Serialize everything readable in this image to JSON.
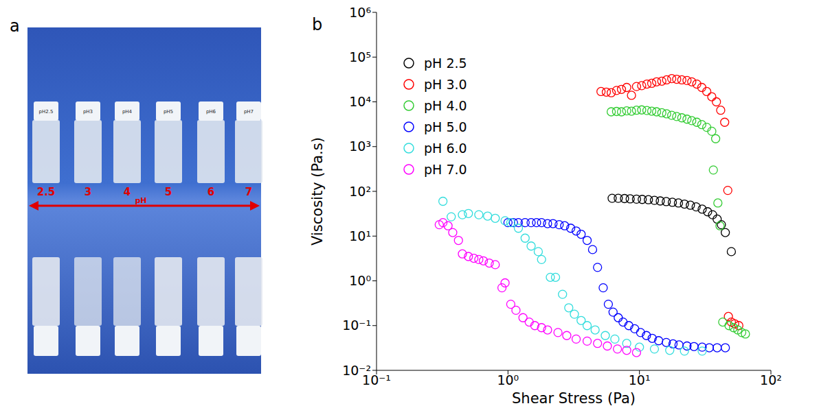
{
  "panel_a": {
    "letter": "a",
    "cap_labels": [
      "pH2.5",
      "pH3",
      "pH4",
      "pH5",
      "pH6",
      "pH7"
    ],
    "ph_labels": [
      "2.5",
      "3",
      "4",
      "5",
      "6",
      "7"
    ],
    "arrow_label": "pH"
  },
  "chart_data": {
    "panel": "b",
    "type": "scatter",
    "x_label": "Shear Stress (Pa)",
    "y_label": "Viscosity (Pa.s)",
    "log": true,
    "grid": false,
    "legend": "upper left",
    "marker": "open circle",
    "xlim": [
      0.1,
      100
    ],
    "ylim": [
      0.01,
      1000000
    ],
    "xticks": [
      {
        "value": 0.1,
        "label": "10⁻¹"
      },
      {
        "value": 1,
        "label": "10⁰"
      },
      {
        "value": 10,
        "label": "10¹"
      },
      {
        "value": 100,
        "label": "10²"
      }
    ],
    "yticks": [
      {
        "value": 0.01,
        "label": "10⁻²"
      },
      {
        "value": 0.1,
        "label": "10⁻¹"
      },
      {
        "value": 1,
        "label": "10⁰"
      },
      {
        "value": 10,
        "label": "10¹"
      },
      {
        "value": 100,
        "label": "10²"
      },
      {
        "value": 1000,
        "label": "10³"
      },
      {
        "value": 10000,
        "label": "10⁴"
      },
      {
        "value": 100000,
        "label": "10⁵"
      },
      {
        "value": 1000000,
        "label": "10⁶"
      }
    ],
    "series": [
      {
        "name": "pH 2.5",
        "color": "#000000",
        "x": [
          6.2,
          6.9,
          7.7,
          8.5,
          9.5,
          10.5,
          11.7,
          13,
          14.4,
          16,
          17.8,
          19.8,
          22,
          24.4,
          27,
          30,
          33,
          36,
          39,
          42,
          45,
          50
        ],
        "values": [
          70,
          70,
          69,
          68,
          67,
          66,
          65,
          63,
          61,
          59,
          57,
          55,
          52,
          49,
          45,
          40,
          35,
          30,
          24,
          18,
          12,
          4.5
        ]
      },
      {
        "name": "pH 3.0",
        "color": "#ff0000",
        "x": [
          5.1,
          5.6,
          6.1,
          6.7,
          7.3,
          8.0,
          8.7,
          9.5,
          10.4,
          11.4,
          12.4,
          13.5,
          14.8,
          16.1,
          17.6,
          19.2,
          21,
          23,
          25,
          27.3,
          29.8,
          32.5,
          35.5,
          38.5,
          41.5,
          44.5,
          47,
          47.5,
          50,
          53,
          57
        ],
        "values": [
          17000,
          16500,
          16000,
          18000,
          19000,
          21000,
          14000,
          22000,
          23000,
          25000,
          26000,
          28000,
          29000,
          31000,
          33000,
          32000,
          31000,
          30000,
          28000,
          25000,
          21000,
          17000,
          13000,
          10000,
          6500,
          3500,
          105,
          0.16,
          0.12,
          0.11,
          0.1
        ]
      },
      {
        "name": "pH 4.0",
        "color": "#33cc33",
        "x": [
          6.1,
          6.7,
          7.3,
          8.0,
          8.7,
          9.5,
          10.4,
          11.4,
          12.4,
          13.5,
          14.8,
          16.1,
          17.6,
          19.2,
          21,
          23,
          25,
          27.3,
          29.8,
          32.5,
          35.5,
          36.5,
          38,
          39.5,
          41,
          43,
          48,
          52,
          56,
          60,
          64
        ],
        "values": [
          6000,
          6100,
          6000,
          6300,
          6200,
          6500,
          6600,
          6400,
          6200,
          6000,
          5700,
          5400,
          5000,
          4700,
          4400,
          4100,
          3800,
          3500,
          3100,
          2700,
          2200,
          300,
          1500,
          55,
          17,
          0.12,
          0.1,
          0.09,
          0.08,
          0.07,
          0.065
        ]
      },
      {
        "name": "pH 5.0",
        "color": "#0000ff",
        "x": [
          1,
          1.1,
          1.2,
          1.35,
          1.5,
          1.65,
          1.8,
          2,
          2.2,
          2.45,
          2.7,
          3,
          3.3,
          3.6,
          4,
          4.4,
          4.8,
          5.3,
          5.8,
          6.3,
          6.9,
          7.5,
          8.3,
          9.2,
          10.2,
          11.3,
          12.5,
          14,
          16,
          18,
          20,
          23,
          26,
          30,
          34,
          39,
          45
        ],
        "values": [
          20,
          20,
          20,
          20,
          20,
          20,
          20,
          19,
          19,
          18,
          17,
          15,
          13,
          11,
          8,
          5,
          2,
          0.7,
          0.3,
          0.2,
          0.15,
          0.12,
          0.1,
          0.085,
          0.07,
          0.06,
          0.052,
          0.046,
          0.042,
          0.039,
          0.037,
          0.035,
          0.034,
          0.033,
          0.032,
          0.032,
          0.032
        ]
      },
      {
        "name": "pH 6.0",
        "color": "#33dddd",
        "x": [
          0.32,
          0.37,
          0.45,
          0.5,
          0.6,
          0.7,
          0.8,
          0.95,
          1.05,
          1.2,
          1.35,
          1.5,
          1.7,
          1.8,
          2.1,
          2.3,
          2.6,
          2.9,
          3.2,
          3.6,
          4,
          4.6,
          5.5,
          6.5,
          8,
          10,
          13,
          17,
          22,
          30
        ],
        "values": [
          60,
          27,
          30,
          32,
          30,
          28,
          25,
          22,
          20,
          15,
          9,
          6,
          4.5,
          3,
          1.2,
          1.2,
          0.5,
          0.25,
          0.18,
          0.13,
          0.1,
          0.08,
          0.06,
          0.05,
          0.04,
          0.033,
          0.03,
          0.028,
          0.027,
          0.027
        ]
      },
      {
        "name": "pH 7.0",
        "color": "#ff00ff",
        "x": [
          0.3,
          0.32,
          0.35,
          0.38,
          0.42,
          0.45,
          0.5,
          0.55,
          0.6,
          0.65,
          0.72,
          0.8,
          0.9,
          0.95,
          1.05,
          1.15,
          1.3,
          1.45,
          1.6,
          1.8,
          2,
          2.4,
          2.8,
          3.3,
          4,
          4.8,
          5.7,
          6.8,
          8,
          9.5
        ],
        "values": [
          18,
          20,
          17,
          12,
          8,
          4,
          3.5,
          3.2,
          3,
          2.8,
          2.5,
          2.3,
          0.7,
          0.9,
          0.3,
          0.22,
          0.15,
          0.12,
          0.1,
          0.09,
          0.08,
          0.07,
          0.06,
          0.05,
          0.045,
          0.04,
          0.035,
          0.03,
          0.028,
          0.025
        ]
      }
    ]
  }
}
